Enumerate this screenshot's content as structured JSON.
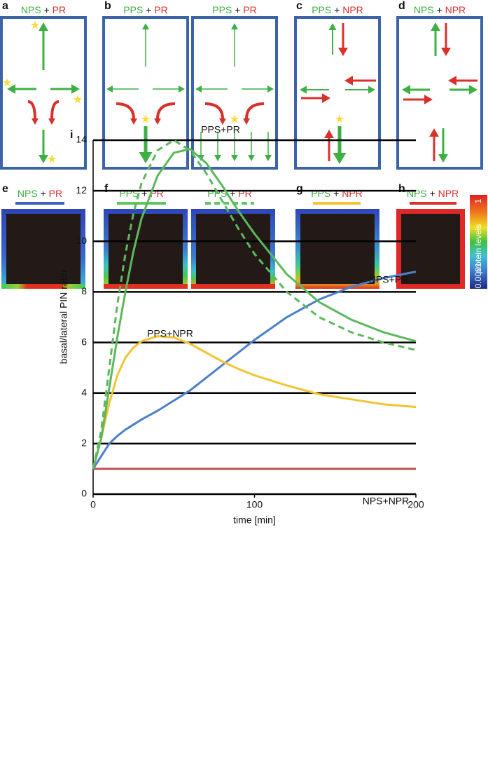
{
  "top_panels": [
    {
      "letter": "a",
      "titles": [
        {
          "left": "NPS",
          "plus": "+",
          "right": "PR"
        }
      ]
    },
    {
      "letter": "b",
      "titles": [
        {
          "left": "PPS",
          "plus": "+",
          "right": "PR"
        },
        {
          "left": "PPS",
          "plus": "+",
          "right": "PR"
        }
      ]
    },
    {
      "letter": "c",
      "titles": [
        {
          "left": "PPS",
          "plus": "+",
          "right": "NPR"
        }
      ]
    },
    {
      "letter": "d",
      "titles": [
        {
          "left": "NPS",
          "plus": "+",
          "right": "NPR"
        }
      ]
    }
  ],
  "heat_panels": [
    {
      "letter": "e",
      "titles": [
        {
          "left": "NPS",
          "plus": "+",
          "right": "PR"
        }
      ]
    },
    {
      "letter": "f",
      "titles": [
        {
          "left": "PPS",
          "plus": "+",
          "right": "PR"
        },
        {
          "left": "PPS",
          "plus": "+",
          "right": "PR"
        }
      ]
    },
    {
      "letter": "g",
      "titles": [
        {
          "left": "PPS",
          "plus": "+",
          "right": "NPR"
        }
      ]
    },
    {
      "letter": "h",
      "titles": [
        {
          "left": "NPS",
          "plus": "+",
          "right": "NPR"
        }
      ]
    }
  ],
  "colorbar": {
    "label": "protein levels",
    "max_label": "1",
    "min_label": "0.0001"
  },
  "chart_data": {
    "type": "line",
    "letter": "i",
    "x_label": "time [min]",
    "y_label": "basal/lateral PIN ratio",
    "x": [
      0,
      5,
      10,
      15,
      20,
      25,
      30,
      40,
      50,
      60,
      70,
      80,
      90,
      100,
      120,
      140,
      160,
      180,
      200
    ],
    "series": [
      {
        "name": "PPS+PR",
        "color": "#5cb85c",
        "values": [
          1,
          2.2,
          4.2,
          6.2,
          8.0,
          9.6,
          10.9,
          12.6,
          13.5,
          13.65,
          13.1,
          12.2,
          11.2,
          10.3,
          8.7,
          7.6,
          6.9,
          6.4,
          6.05
        ]
      },
      {
        "color": "#5cb85c",
        "dashed": true,
        "values": [
          1,
          2.5,
          5.0,
          7.5,
          9.5,
          11.1,
          12.3,
          13.6,
          14.0,
          13.6,
          12.7,
          11.6,
          10.5,
          9.5,
          8.0,
          7.0,
          6.4,
          6.0,
          5.7
        ]
      },
      {
        "name": "NPS+PR",
        "color": "#4a7fc9",
        "values": [
          1,
          1.5,
          2.0,
          2.3,
          2.55,
          2.75,
          2.95,
          3.3,
          3.7,
          4.1,
          4.6,
          5.1,
          5.6,
          6.1,
          7.0,
          7.7,
          8.2,
          8.55,
          8.8
        ]
      },
      {
        "name": "PPS+NPR",
        "color": "#f4c430",
        "values": [
          1,
          2.2,
          3.6,
          4.7,
          5.4,
          5.8,
          6.05,
          6.25,
          6.2,
          5.95,
          5.6,
          5.25,
          4.95,
          4.7,
          4.3,
          3.95,
          3.75,
          3.55,
          3.45
        ]
      },
      {
        "name": "NPS+NPR",
        "color": "#c0504d",
        "values": [
          1,
          1,
          1,
          1,
          1,
          1,
          1,
          1,
          1,
          1,
          1,
          1,
          1,
          1,
          1,
          1,
          1,
          1,
          1
        ]
      }
    ],
    "xlim": [
      0,
      200
    ],
    "xticks": [
      0,
      100,
      200
    ],
    "ylim": [
      0,
      14
    ],
    "yticks": [
      0,
      2,
      4,
      6,
      8,
      10,
      12,
      14
    ],
    "grid": true
  }
}
